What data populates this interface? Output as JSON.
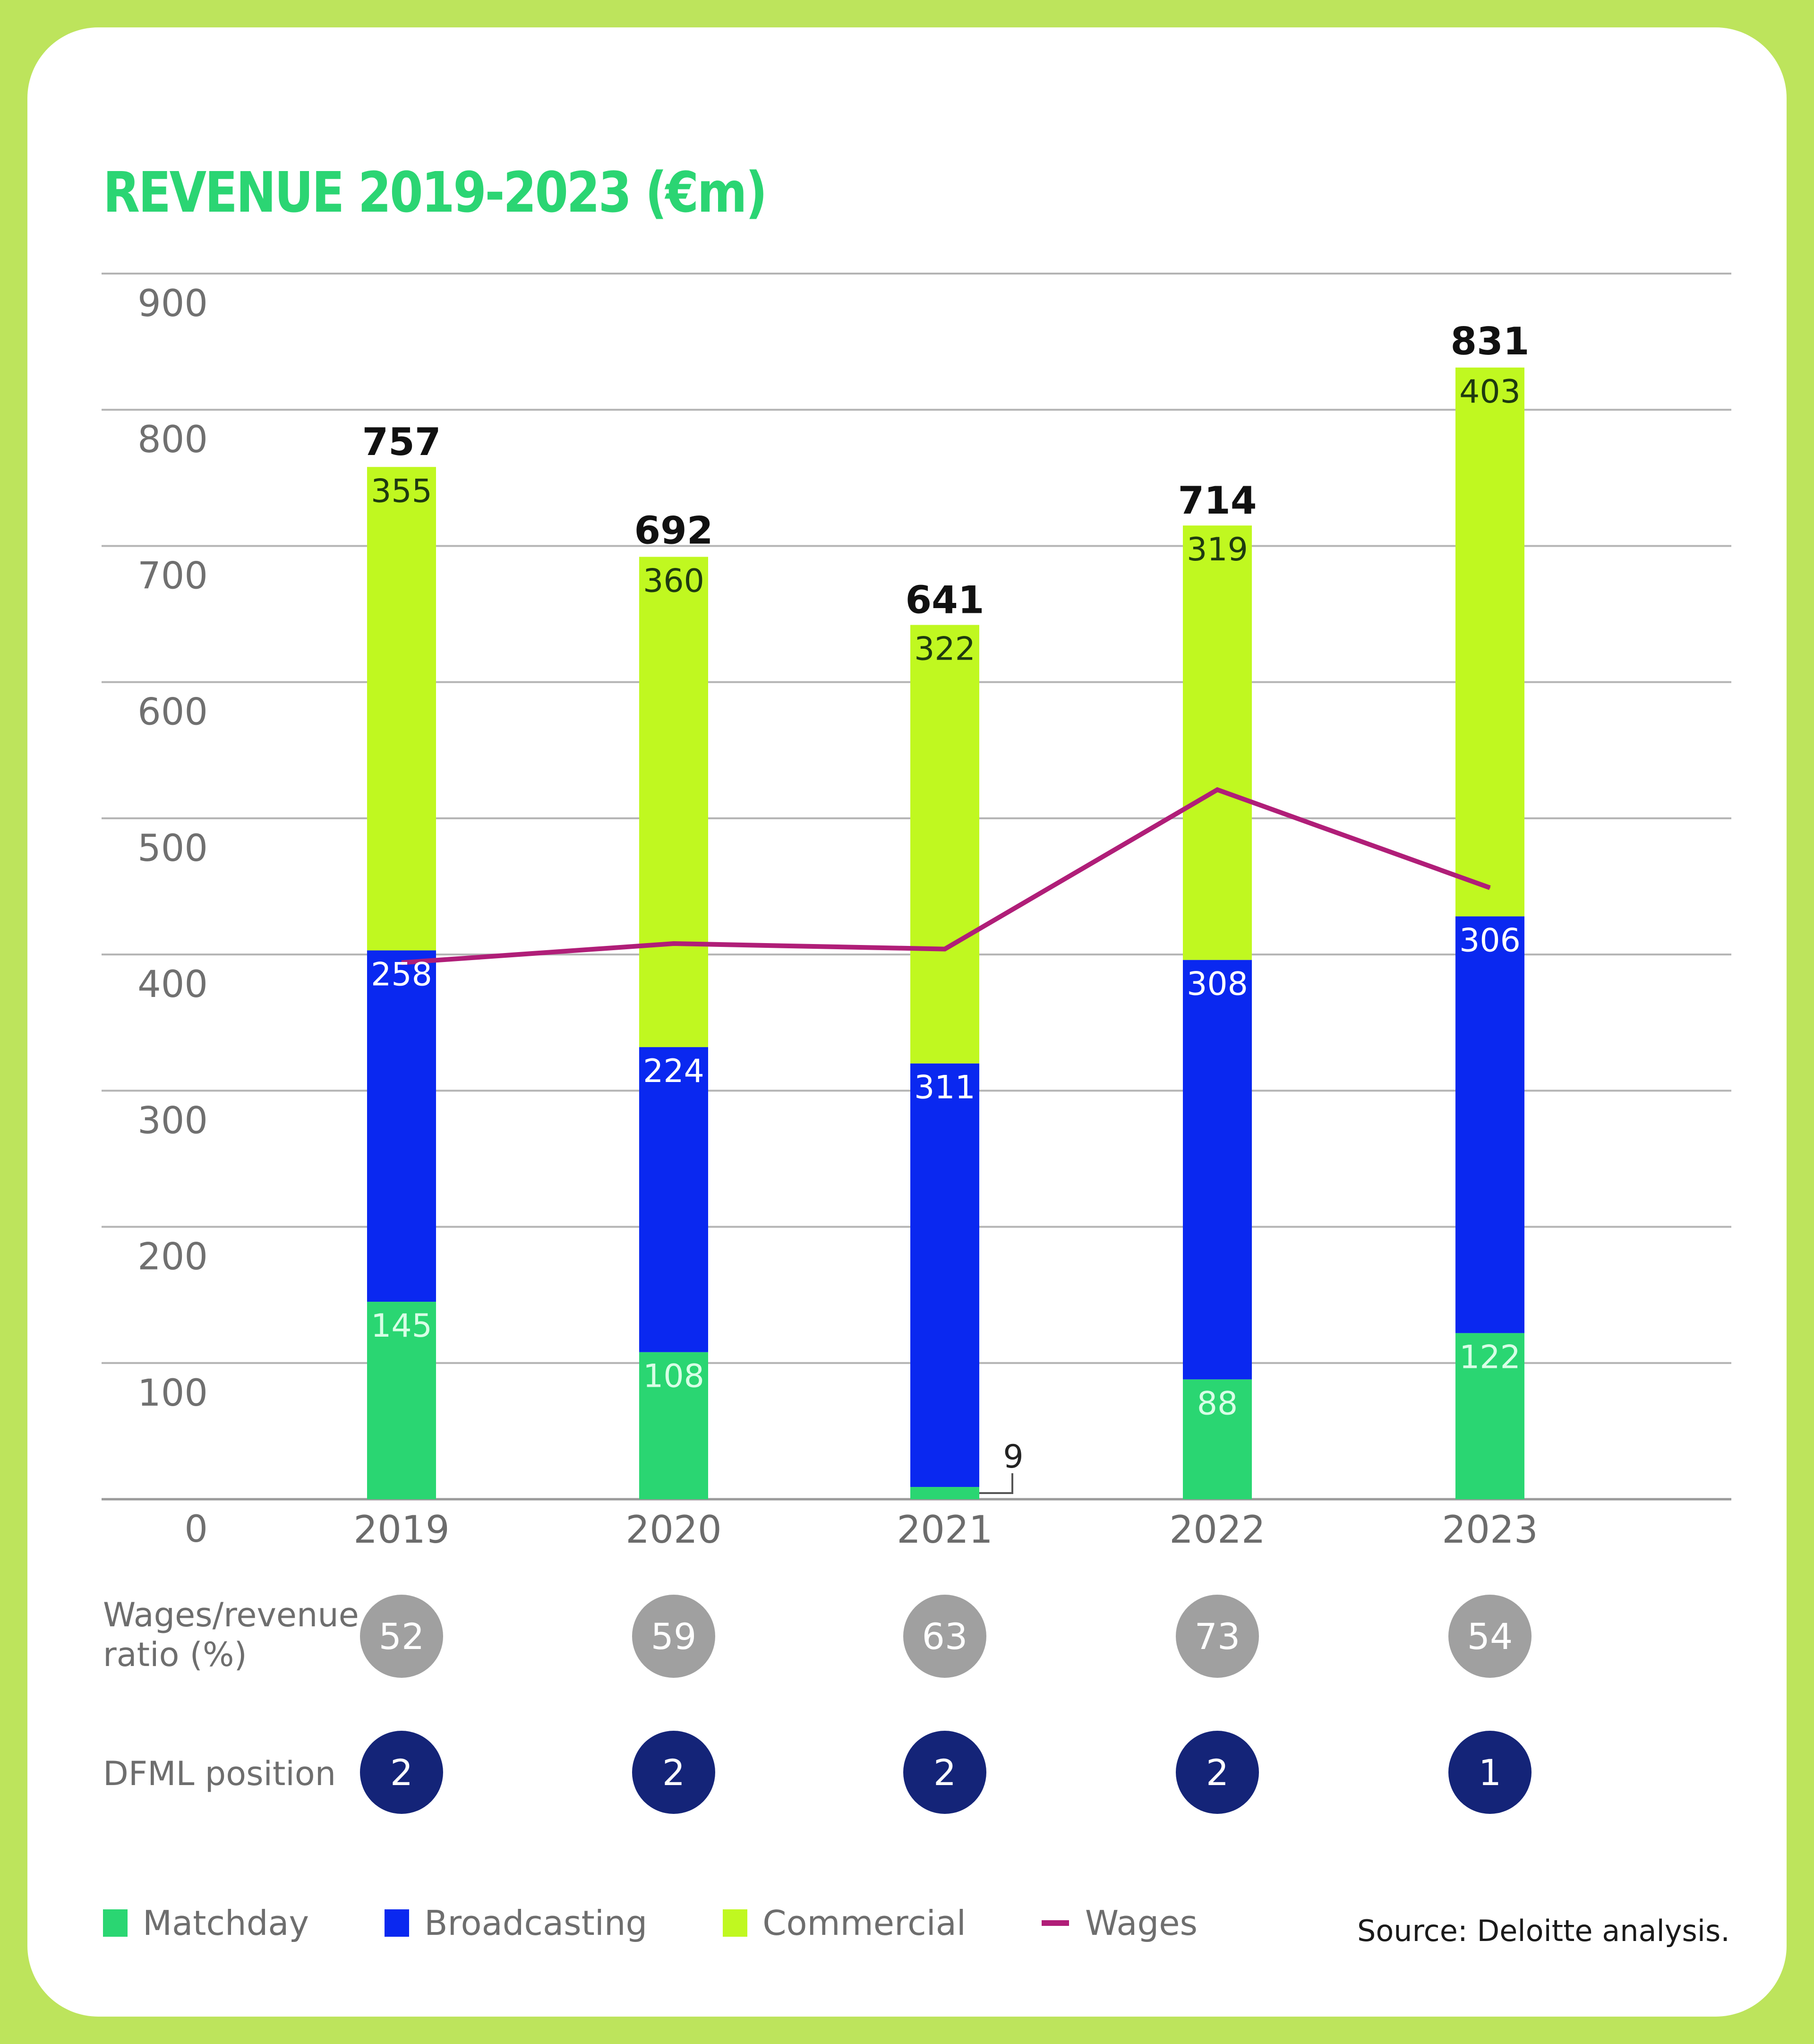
{
  "title": "REVENUE 2019-2023 (€m)",
  "colors": {
    "matchday": "#2AD672",
    "broadcasting": "#0A28F0",
    "commercial": "#C0F820",
    "wages": "#B01E78",
    "title": "#2BD573",
    "frame": "#BDE45C",
    "ratio_circle": "#A0A0A0",
    "position_circle": "#142478"
  },
  "chart_data": {
    "type": "bar",
    "stacked": true,
    "title": "REVENUE 2019-2023 (€m)",
    "xlabel": "",
    "ylabel": "",
    "categories": [
      "2019",
      "2020",
      "2021",
      "2022",
      "2023"
    ],
    "ylim": [
      0,
      900
    ],
    "yticks": [
      0,
      100,
      200,
      300,
      400,
      500,
      600,
      700,
      800,
      900
    ],
    "grid": true,
    "series": [
      {
        "name": "Matchday",
        "values": [
          145,
          108,
          9,
          88,
          122
        ],
        "labels": [
          "145",
          "108",
          "9",
          "88",
          "122"
        ]
      },
      {
        "name": "Broadcasting",
        "values": [
          258,
          224,
          311,
          308,
          306
        ],
        "labels": [
          "258",
          "224",
          "311",
          "308",
          "306"
        ]
      },
      {
        "name": "Commercial",
        "values": [
          355,
          360,
          322,
          319,
          403
        ],
        "labels": [
          "355",
          "360",
          "322",
          "319",
          "403"
        ]
      }
    ],
    "totals": [
      757,
      692,
      641,
      714,
      831
    ],
    "line_series": {
      "name": "Wages",
      "type": "line",
      "values": [
        394,
        408,
        404,
        521,
        449
      ]
    },
    "legend": [
      "Matchday",
      "Broadcasting",
      "Commercial",
      "Wages"
    ],
    "legend_position": "bottom-left"
  },
  "rows": {
    "wages_ratio": {
      "label_line1": "Wages/revenue",
      "label_line2": "ratio (%)",
      "values": [
        "52",
        "59",
        "63",
        "73",
        "54"
      ]
    },
    "dfml_position": {
      "label": "DFML position",
      "values": [
        "2",
        "2",
        "2",
        "2",
        "1"
      ]
    }
  },
  "legend": {
    "items": [
      {
        "label": "Matchday",
        "kind": "swatch"
      },
      {
        "label": "Broadcasting",
        "kind": "swatch"
      },
      {
        "label": "Commercial",
        "kind": "swatch"
      },
      {
        "label": "Wages",
        "kind": "line"
      }
    ]
  },
  "source": "Source: Deloitte analysis."
}
